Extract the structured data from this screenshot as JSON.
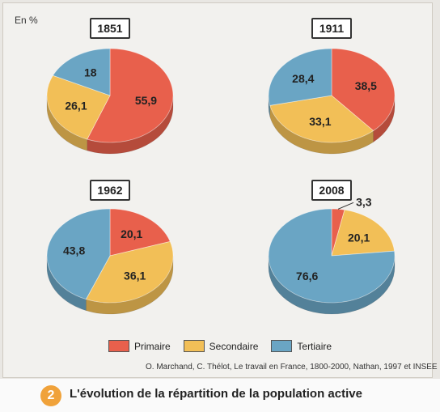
{
  "unit_label": "En %",
  "colors": {
    "primaire": "#e8604c",
    "secondaire": "#f2bf57",
    "tertiaire": "#6aa5c4"
  },
  "legend": [
    "Primaire",
    "Secondaire",
    "Tertiaire"
  ],
  "source": "O. Marchand, C. Thélot, Le travail en France, 1800-2000, Nathan, 1997 et INSEE",
  "caption_number": "2",
  "caption": "L'évolution de la répartition de la population active",
  "chart_data": [
    {
      "type": "pie",
      "title": "1851",
      "categories": [
        "Primaire",
        "Secondaire",
        "Tertiaire"
      ],
      "values": [
        55.9,
        26.1,
        18
      ],
      "labels": [
        "55,9",
        "26,1",
        "18"
      ]
    },
    {
      "type": "pie",
      "title": "1911",
      "categories": [
        "Primaire",
        "Secondaire",
        "Tertiaire"
      ],
      "values": [
        38.5,
        33.1,
        28.4
      ],
      "labels": [
        "38,5",
        "33,1",
        "28,4"
      ]
    },
    {
      "type": "pie",
      "title": "1962",
      "categories": [
        "Primaire",
        "Secondaire",
        "Tertiaire"
      ],
      "values": [
        20.1,
        36.1,
        43.8
      ],
      "labels": [
        "20,1",
        "36,1",
        "43,8"
      ]
    },
    {
      "type": "pie",
      "title": "2008",
      "categories": [
        "Primaire",
        "Secondaire",
        "Tertiaire"
      ],
      "values": [
        3.3,
        20.1,
        76.6
      ],
      "labels": [
        "3,3",
        "20,1",
        "76,6"
      ]
    }
  ]
}
